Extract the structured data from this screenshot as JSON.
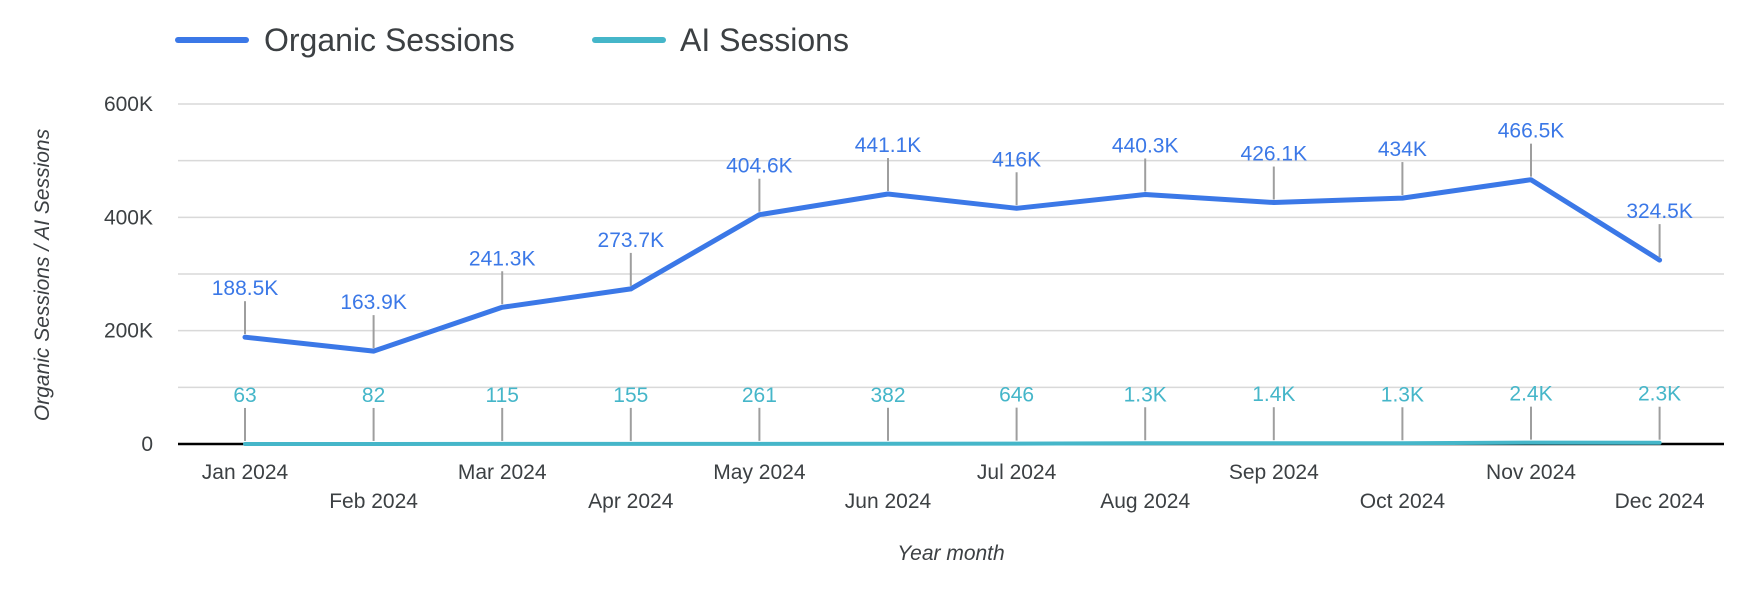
{
  "chart_data": {
    "type": "line",
    "categories": [
      "Jan 2024",
      "Feb 2024",
      "Mar 2024",
      "Apr 2024",
      "May 2024",
      "Jun 2024",
      "Jul 2024",
      "Aug 2024",
      "Sep 2024",
      "Oct 2024",
      "Nov 2024",
      "Dec 2024"
    ],
    "series": [
      {
        "name": "Organic Sessions",
        "color": "#3b78e7",
        "values": [
          188500,
          163900,
          241300,
          273700,
          404600,
          441100,
          416000,
          440300,
          426100,
          434000,
          466500,
          324500
        ],
        "labels": [
          "188.5K",
          "163.9K",
          "241.3K",
          "273.7K",
          "404.6K",
          "441.1K",
          "416K",
          "440.3K",
          "426.1K",
          "434K",
          "466.5K",
          "324.5K"
        ]
      },
      {
        "name": "AI Sessions",
        "color": "#45b6c9",
        "values": [
          63,
          82,
          115,
          155,
          261,
          382,
          646,
          1300,
          1400,
          1300,
          2400,
          2300
        ],
        "labels": [
          "63",
          "82",
          "115",
          "155",
          "261",
          "382",
          "646",
          "1.3K",
          "1.4K",
          "1.3K",
          "2.4K",
          "2.3K"
        ]
      }
    ],
    "xlabel": "Year month",
    "ylabel": "Organic Sessions / AI Sessions",
    "ylim": [
      0,
      600000
    ],
    "y_ticks": [
      {
        "value": 0,
        "label": "0"
      },
      {
        "value": 200000,
        "label": "200K"
      },
      {
        "value": 400000,
        "label": "400K"
      },
      {
        "value": 600000,
        "label": "600K"
      }
    ],
    "grid": true,
    "legend_position": "top-left",
    "colors": {
      "grid": "#d9d9d9",
      "axis": "#000000",
      "leader": "#9e9e9e",
      "text": "#3c4043"
    }
  }
}
